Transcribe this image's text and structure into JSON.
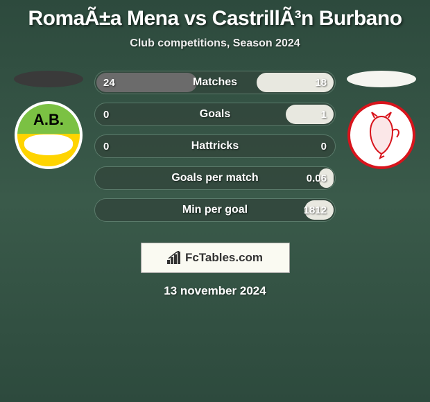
{
  "header": {
    "title": "RomaÃ±a Mena vs CastrillÃ³n Burbano",
    "subtitle": "Club competitions, Season 2024"
  },
  "clubs": {
    "left": {
      "ellipse_color": "#3a3a3a",
      "crest_label": "A.B."
    },
    "right": {
      "ellipse_color": "#f5f5f0",
      "crest_accent": "#d8141c"
    }
  },
  "stats": {
    "bar_bg": "rgba(51,70,60,0.85)",
    "bar_border": "#5a7a6a",
    "fill_left_color": "#6b6b6b",
    "fill_right_color": "#e8e8e0",
    "rows": [
      {
        "label": "Matches",
        "left": "24",
        "right": "18",
        "left_pct": 42,
        "right_pct": 32
      },
      {
        "label": "Goals",
        "left": "0",
        "right": "1",
        "left_pct": 0,
        "right_pct": 20
      },
      {
        "label": "Hattricks",
        "left": "0",
        "right": "0",
        "left_pct": 0,
        "right_pct": 0
      },
      {
        "label": "Goals per match",
        "left": "",
        "right": "0.06",
        "left_pct": 0,
        "right_pct": 6
      },
      {
        "label": "Min per goal",
        "left": "",
        "right": "1812",
        "left_pct": 0,
        "right_pct": 12
      }
    ]
  },
  "branding": {
    "logo_text": "FcTables.com"
  },
  "footer": {
    "date": "13 november 2024"
  }
}
